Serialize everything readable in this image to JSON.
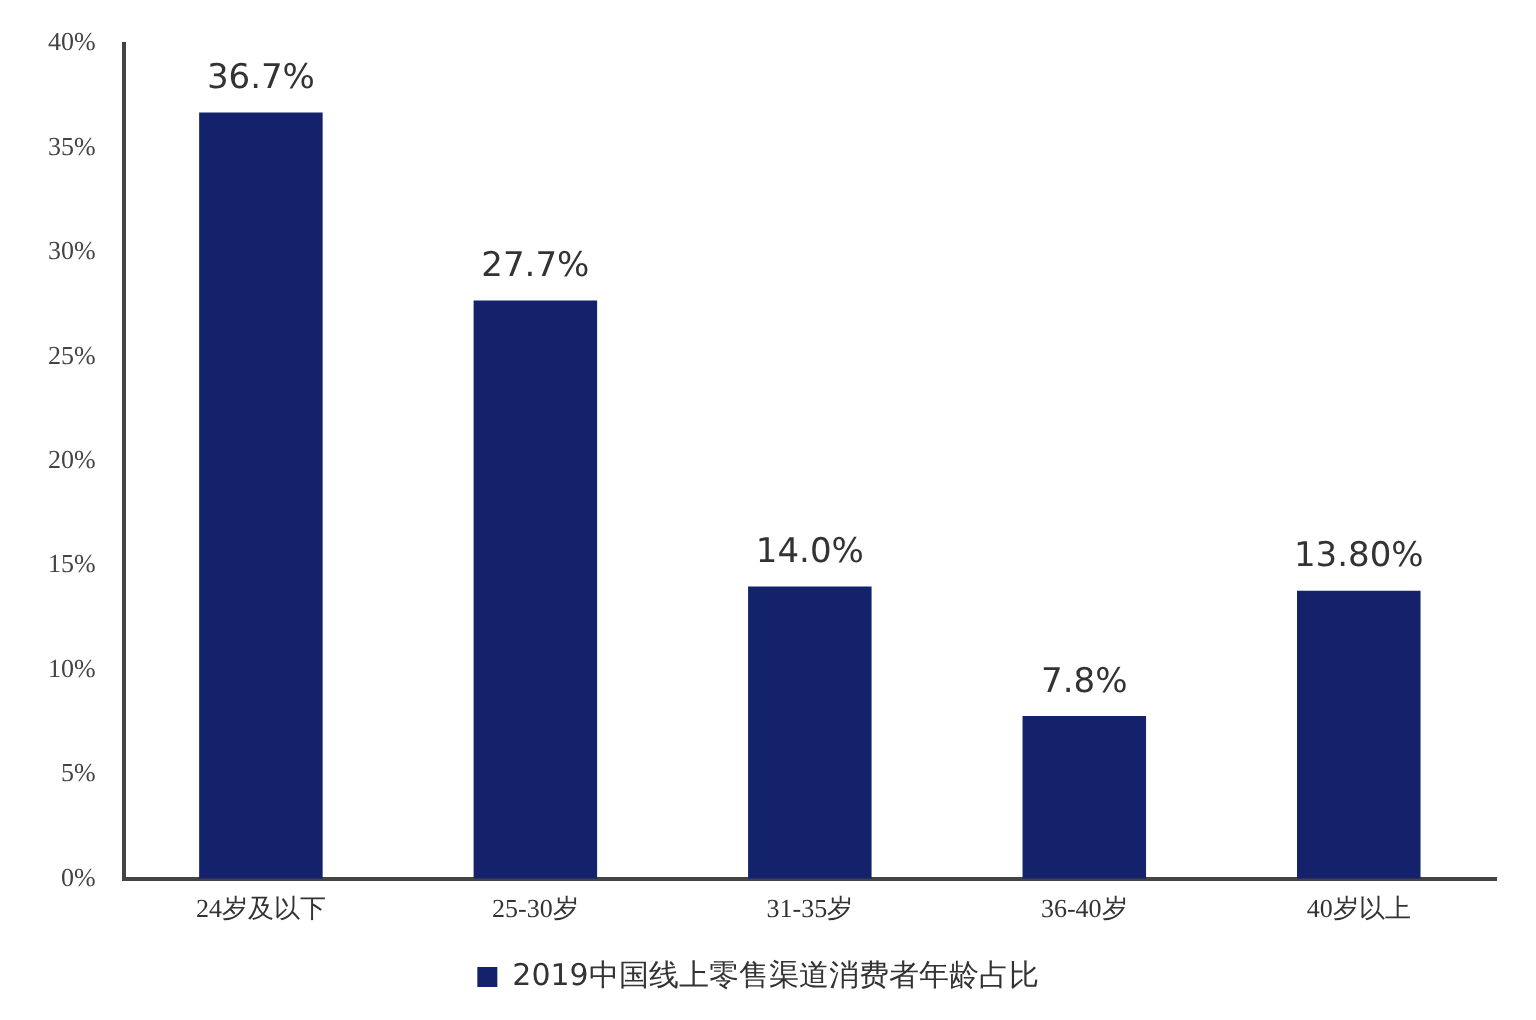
{
  "chart_data": {
    "type": "bar",
    "categories": [
      "24岁及以下",
      "25-30岁",
      "31-35岁",
      "36-40岁",
      "40岁以上"
    ],
    "series": [
      {
        "name": "2019中国线上零售渠道消费者年龄占比",
        "color": "#14216b",
        "values": [
          36.7,
          27.7,
          14.0,
          7.8,
          13.8
        ],
        "value_labels": [
          "36.7%",
          "27.7%",
          "14.0%",
          "7.8%",
          "13.80%"
        ]
      }
    ],
    "ylim": [
      0,
      40
    ],
    "yticks": [
      {
        "value": 0,
        "label": "0%"
      },
      {
        "value": 5,
        "label": "5%"
      },
      {
        "value": 10,
        "label": "10%"
      },
      {
        "value": 15,
        "label": "15%"
      },
      {
        "value": 20,
        "label": "20%"
      },
      {
        "value": 25,
        "label": "25%"
      },
      {
        "value": 30,
        "label": "30%"
      },
      {
        "value": 35,
        "label": "35%"
      },
      {
        "value": 40,
        "label": "40%"
      }
    ],
    "grid": false,
    "legend": "bottom"
  }
}
